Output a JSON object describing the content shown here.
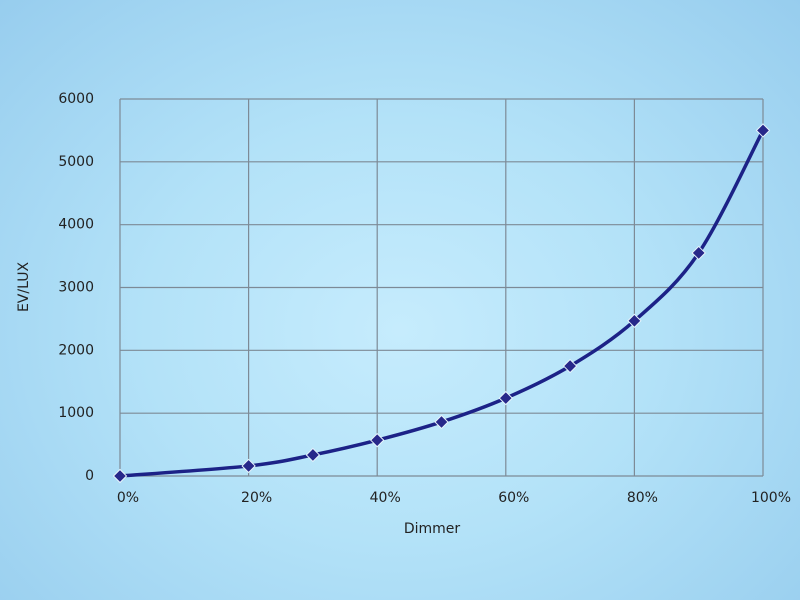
{
  "chart_data": {
    "type": "line",
    "x_label": "Dimmer",
    "y_label": "EV/LUX",
    "x": [
      0,
      20,
      30,
      40,
      50,
      60,
      70,
      80,
      90,
      100
    ],
    "series": [
      {
        "color": "#1c2287",
        "marker_color": "#27288a",
        "values": [
          0,
          160,
          335,
          570,
          860,
          1240,
          1750,
          2470,
          3550,
          5500
        ]
      }
    ],
    "xlim": [
      0,
      100
    ],
    "xticks": [
      {
        "value": 0,
        "label": "0%"
      },
      {
        "value": 20,
        "label": "20%"
      },
      {
        "value": 40,
        "label": "40%"
      },
      {
        "value": 60,
        "label": "60%"
      },
      {
        "value": 80,
        "label": "80%"
      },
      {
        "value": 100,
        "label": "100%"
      }
    ],
    "ylim": [
      0,
      6000
    ],
    "yticks": [
      0,
      1000,
      2000,
      3000,
      4000,
      5000,
      6000
    ],
    "grid": true,
    "smooth": true
  }
}
